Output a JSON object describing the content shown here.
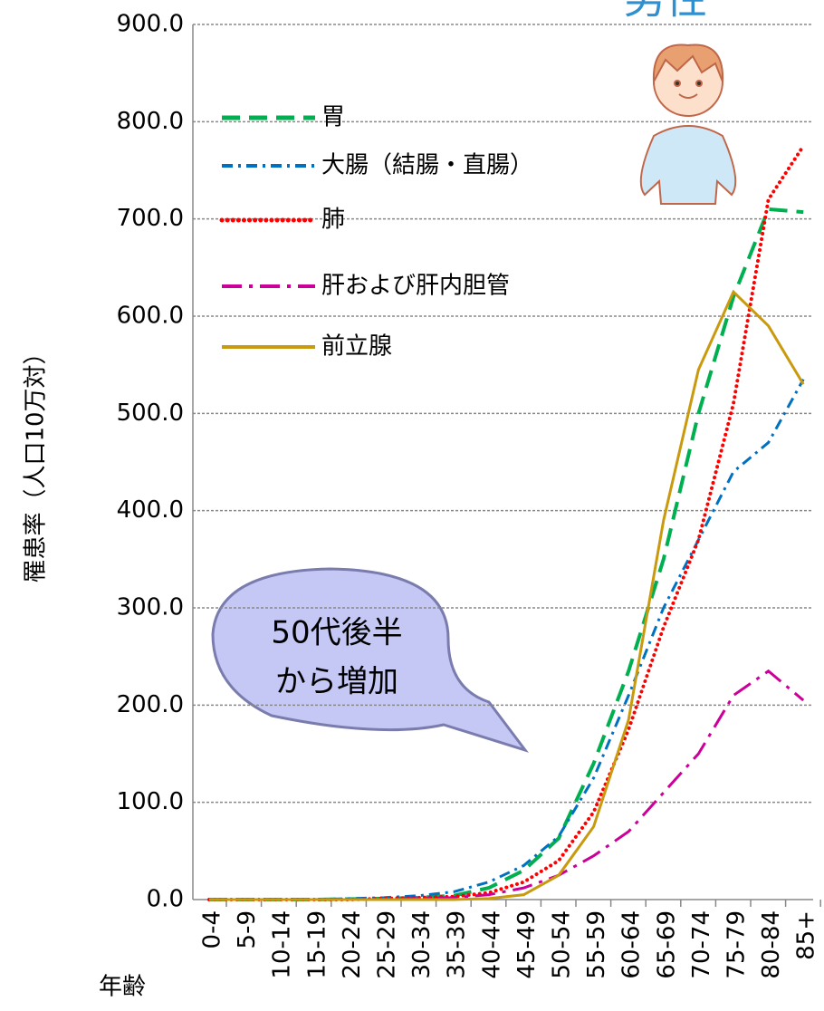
{
  "chart_data": {
    "type": "line",
    "title": "男性",
    "ylabel": "罹患率（人口10万対）",
    "xlabel": "年齢",
    "categories": [
      "0-4",
      "5-9",
      "10-14",
      "15-19",
      "20-24",
      "25-29",
      "30-34",
      "35-39",
      "40-44",
      "45-49",
      "50-54",
      "55-59",
      "60-64",
      "65-69",
      "70-74",
      "75-79",
      "80-84",
      "85+"
    ],
    "series": [
      {
        "name": "胃",
        "color": "#00b050",
        "values": [
          0,
          0,
          0,
          0,
          0.5,
          1,
          2,
          4,
          12,
          30,
          63,
          140,
          235,
          350,
          500,
          620,
          710,
          707
        ]
      },
      {
        "name": "大腸（結腸・直腸）",
        "color": "#0070c0",
        "values": [
          0,
          0,
          0,
          0,
          1,
          2,
          4,
          8,
          18,
          35,
          65,
          125,
          210,
          300,
          370,
          440,
          470,
          535
        ]
      },
      {
        "name": "肺",
        "color": "#ff0000",
        "values": [
          0,
          0,
          0,
          0,
          0,
          1,
          2,
          3,
          7,
          18,
          40,
          90,
          175,
          280,
          370,
          510,
          720,
          775
        ]
      },
      {
        "name": "肝および肝内胆管",
        "color": "#cc0099",
        "values": [
          0,
          0,
          0,
          0,
          0,
          0,
          1,
          2,
          5,
          12,
          25,
          45,
          70,
          110,
          150,
          210,
          235,
          205
        ]
      },
      {
        "name": "前立腺",
        "color": "#c99a0e",
        "values": [
          0,
          0,
          0,
          0,
          0,
          0,
          0,
          0,
          1,
          5,
          25,
          75,
          185,
          390,
          545,
          625,
          590,
          530
        ]
      }
    ],
    "ylim": [
      0,
      900
    ],
    "yticks": [
      {
        "value": 0,
        "label": "0.0"
      },
      {
        "value": 100,
        "label": "100.0"
      },
      {
        "value": 200,
        "label": "200.0"
      },
      {
        "value": 300,
        "label": "300.0"
      },
      {
        "value": 400,
        "label": "400.0"
      },
      {
        "value": 500,
        "label": "500.0"
      },
      {
        "value": 600,
        "label": "600.0"
      },
      {
        "value": 700,
        "label": "700.0"
      },
      {
        "value": 800,
        "label": "800.0"
      },
      {
        "value": 900,
        "label": "900.0"
      }
    ],
    "grid": true,
    "annotation": [
      "50代後半",
      "から増加"
    ]
  }
}
